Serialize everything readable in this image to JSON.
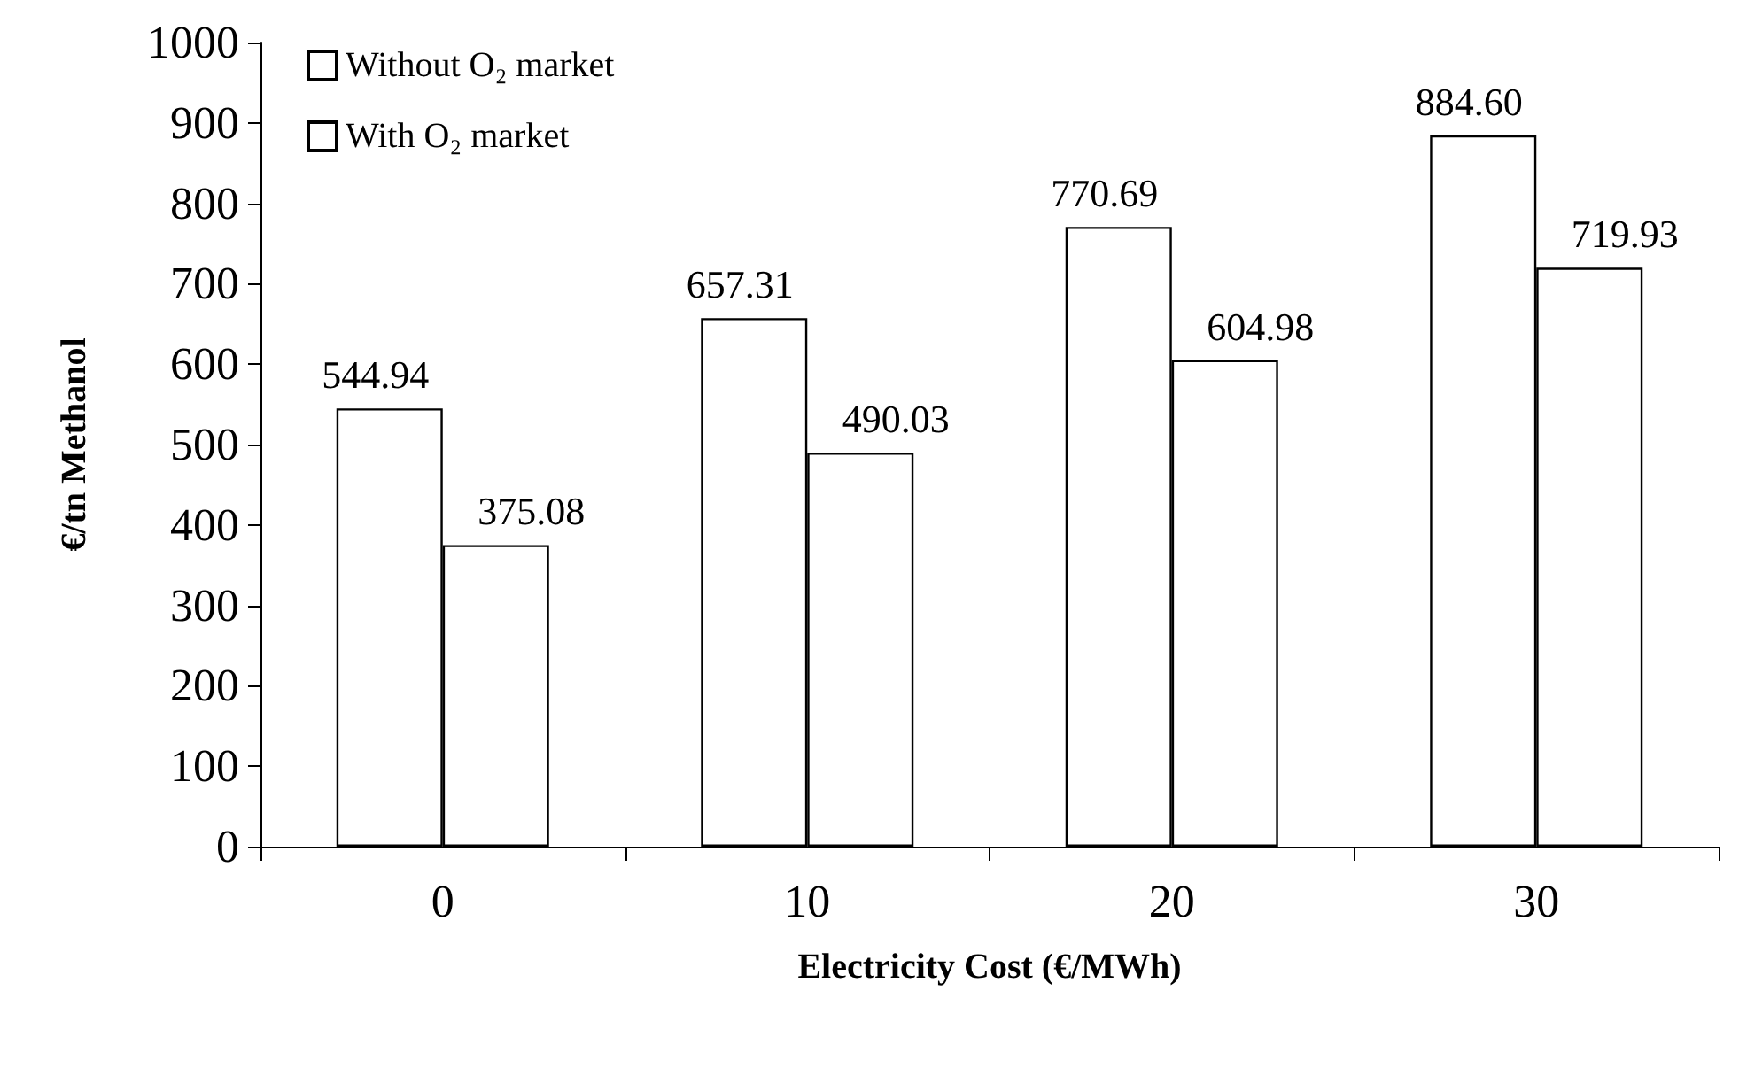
{
  "chart_data": {
    "type": "bar",
    "xlabel": "Electricity Cost (€/MWh)",
    "ylabel": "€/tn Methanol",
    "categories": [
      "0",
      "10",
      "20",
      "30"
    ],
    "series": [
      {
        "name": "Without O₂ market",
        "color": "#ffffff",
        "values": [
          544.94,
          657.31,
          770.69,
          884.6
        ],
        "value_labels": [
          "544.94",
          "657.31",
          "770.69",
          "884.60"
        ]
      },
      {
        "name": "With O₂ market",
        "color": "#ffffff",
        "values": [
          375.08,
          490.03,
          604.98,
          719.93
        ],
        "value_labels": [
          "375.08",
          "490.03",
          "604.98",
          "719.93"
        ]
      }
    ],
    "ylim": [
      0,
      1000
    ],
    "yticks": [
      0,
      100,
      200,
      300,
      400,
      500,
      600,
      700,
      800,
      900,
      1000
    ],
    "legend": "top left"
  }
}
